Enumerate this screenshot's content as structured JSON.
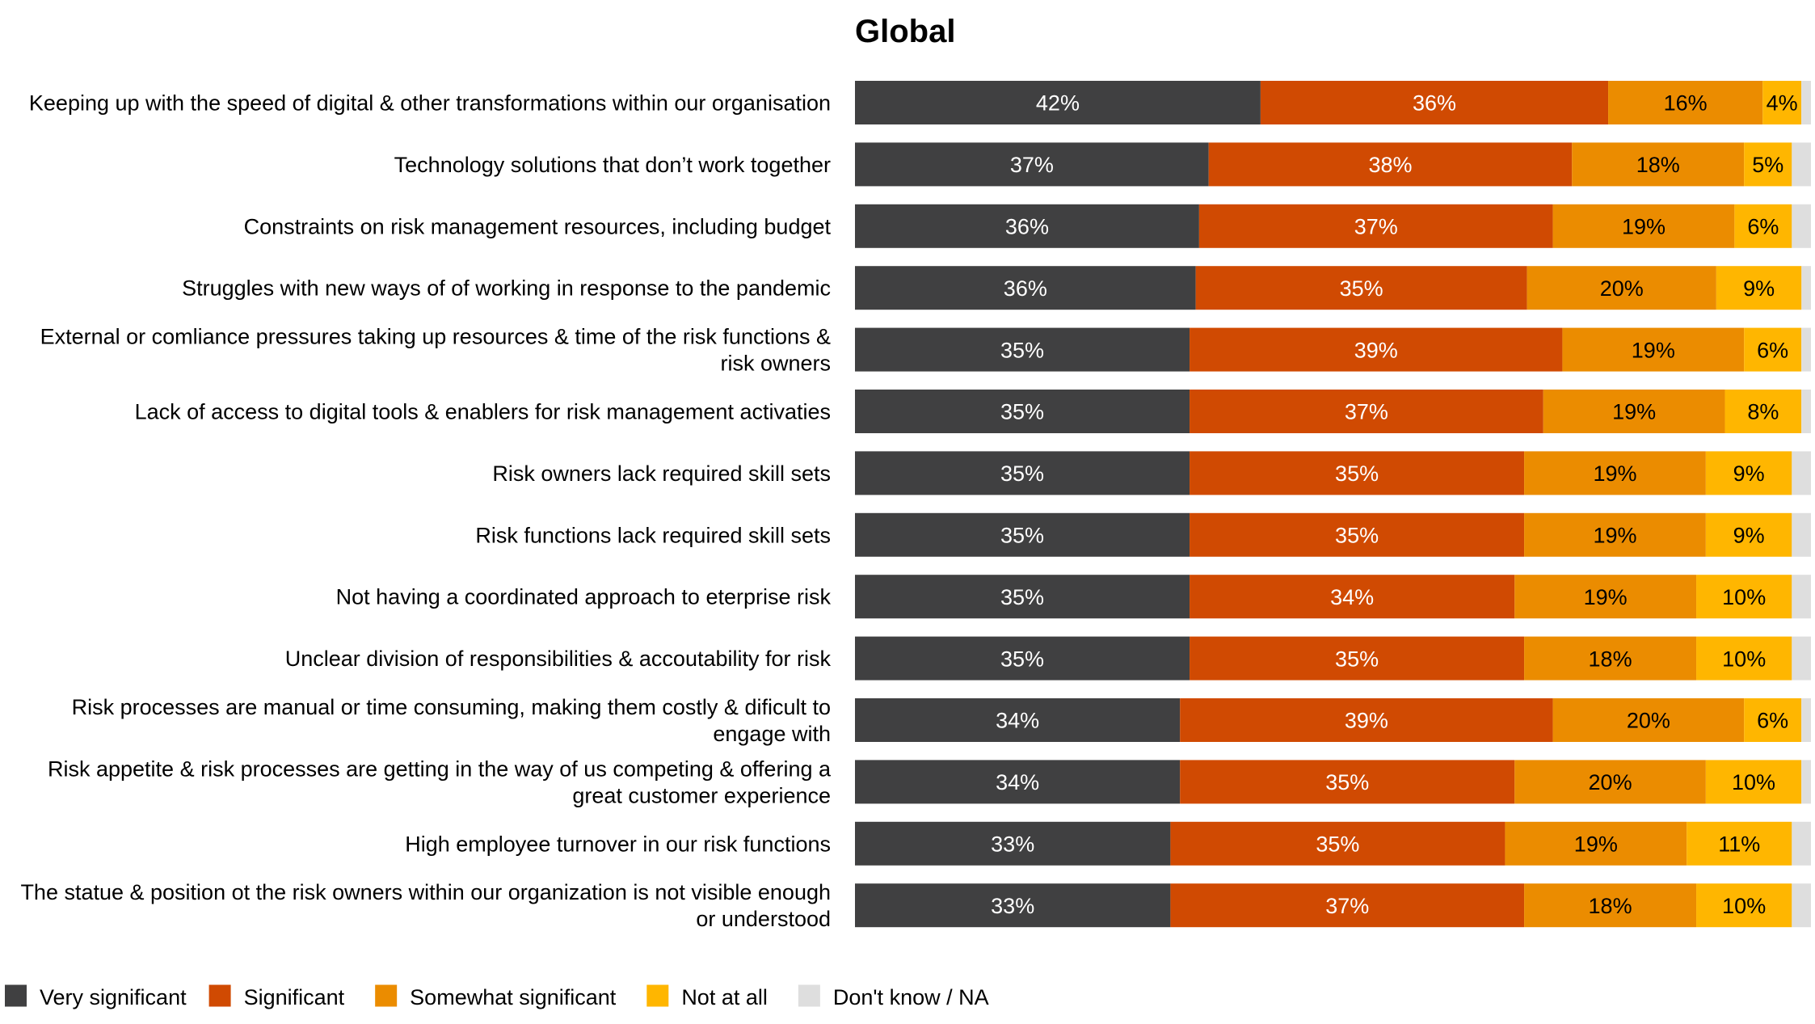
{
  "chart_data": {
    "type": "bar",
    "orientation": "horizontal",
    "stacked": true,
    "title": "Global",
    "legend_position": "bottom-left",
    "grid": false,
    "xlim": [
      0,
      100
    ],
    "categories": [
      [
        "Keeping up with the speed of digital & other transformations within our organisation"
      ],
      [
        "Technology solutions that don’t work together"
      ],
      [
        "Constraints on risk management resources, including budget"
      ],
      [
        "Struggles with new ways of of working in response to the pandemic"
      ],
      [
        "External or comliance pressures taking up resources & time of the risk functions &",
        "risk owners"
      ],
      [
        "Lack of access to digital tools & enablers for risk management activaties"
      ],
      [
        "Risk owners lack required skill sets"
      ],
      [
        "Risk functions lack required skill sets"
      ],
      [
        "Not having a coordinated approach to eterprise risk"
      ],
      [
        "Unclear division of responsibilities & accoutability for risk"
      ],
      [
        "Risk processes are manual or time consuming, making them costly & dificult to",
        "engage with"
      ],
      [
        "Risk appetite & risk processes are getting in the way of us competing & offering a",
        "great customer experience"
      ],
      [
        "High employee turnover in our risk functions"
      ],
      [
        "The statue & position ot the risk owners within our organization is not visible enough",
        "or understood"
      ]
    ],
    "series": [
      {
        "name": "Very significant",
        "color": "#404041",
        "label_color": "#ffffff",
        "values": [
          42,
          37,
          36,
          36,
          35,
          35,
          35,
          35,
          35,
          35,
          34,
          34,
          33,
          33
        ]
      },
      {
        "name": "Significant",
        "color": "#d04a02",
        "label_color": "#ffffff",
        "values": [
          36,
          38,
          37,
          35,
          39,
          37,
          35,
          35,
          34,
          35,
          39,
          35,
          35,
          37
        ]
      },
      {
        "name": "Somewhat significant",
        "color": "#eb8c00",
        "label_color": "#000000",
        "values": [
          16,
          18,
          19,
          20,
          19,
          19,
          19,
          19,
          19,
          18,
          20,
          20,
          19,
          18
        ]
      },
      {
        "name": "Not at all",
        "color": "#ffb600",
        "label_color": "#000000",
        "values": [
          4,
          5,
          6,
          9,
          6,
          8,
          9,
          9,
          10,
          10,
          6,
          10,
          11,
          10
        ]
      },
      {
        "name": "Don't know / NA",
        "color": "#dedede",
        "label_color": "#000000",
        "values": [
          1,
          2,
          2,
          1,
          1,
          1,
          2,
          2,
          2,
          2,
          1,
          1,
          2,
          2
        ]
      }
    ]
  }
}
